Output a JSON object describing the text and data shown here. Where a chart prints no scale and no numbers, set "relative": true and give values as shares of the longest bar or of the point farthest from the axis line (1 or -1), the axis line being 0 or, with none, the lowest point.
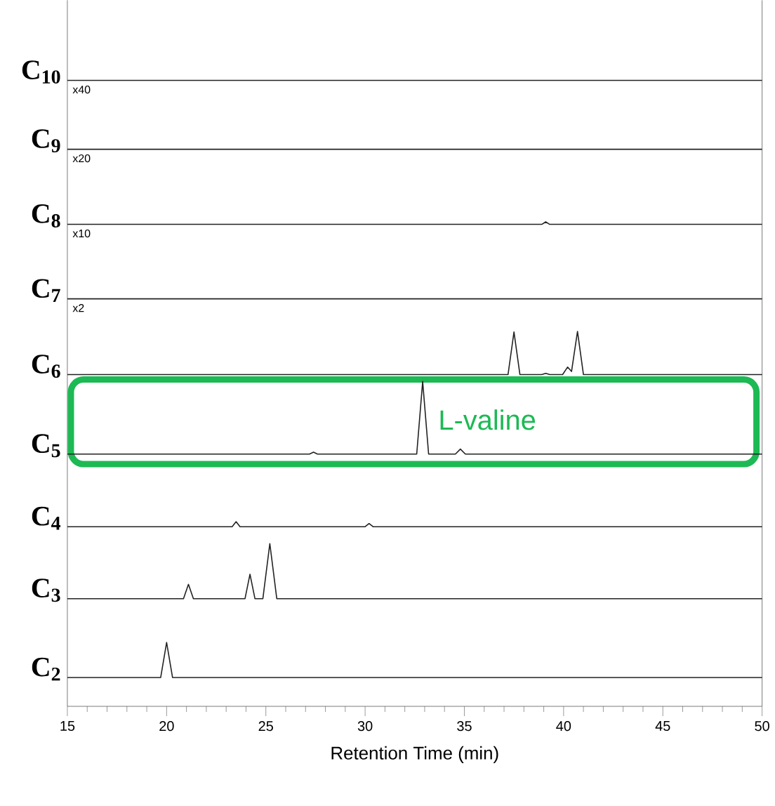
{
  "chart_data": {
    "type": "line",
    "relative": true,
    "xlabel": "Retention Time (min)",
    "xlim": [
      15,
      50
    ],
    "xticks": [
      15,
      20,
      25,
      30,
      35,
      40,
      45,
      50
    ],
    "marker": "none",
    "line_style": "solid",
    "series": [
      {
        "name": "C$_{2}$",
        "color": "#222222",
        "x": [
          15,
          19.7,
          20.0,
          20.3,
          50
        ],
        "values": [
          0.046,
          0.046,
          0.102,
          0.046,
          0.046
        ]
      },
      {
        "name": "C$_{3}$",
        "color": "#222222",
        "x": [
          15,
          20.85,
          21.1,
          21.35,
          23.95,
          24.2,
          24.45,
          24.85,
          25.2,
          25.55,
          50
        ],
        "values": [
          0.172,
          0.172,
          0.195,
          0.172,
          0.172,
          0.211,
          0.172,
          0.172,
          0.26,
          0.172,
          0.172
        ]
      },
      {
        "name": "C$_{4}$",
        "color": "#222222",
        "x": [
          15,
          23.3,
          23.5,
          23.7,
          30.0,
          30.2,
          30.4,
          50
        ],
        "values": [
          0.287,
          0.287,
          0.295,
          0.287,
          0.287,
          0.292,
          0.287,
          0.287
        ]
      },
      {
        "name": "C$_{5}$",
        "color": "#222222",
        "x": [
          15,
          27.2,
          27.4,
          27.6,
          32.6,
          32.9,
          33.2,
          34.55,
          34.8,
          35.05,
          50
        ],
        "values": [
          0.403,
          0.403,
          0.406,
          0.403,
          0.403,
          0.519,
          0.403,
          0.403,
          0.411,
          0.403,
          0.403
        ]
      },
      {
        "name": "C$_{6}$",
        "color": "#222222",
        "x": [
          15,
          37.2,
          37.5,
          37.8,
          38.9,
          39.1,
          39.3,
          39.95,
          40.2,
          40.4,
          40.7,
          41.0,
          50
        ],
        "values": [
          0.53,
          0.53,
          0.598,
          0.53,
          0.53,
          0.532,
          0.53,
          0.53,
          0.542,
          0.535,
          0.599,
          0.53,
          0.53
        ]
      },
      {
        "name": "C$_{7}$",
        "color": "#222222",
        "x": [
          15,
          50
        ],
        "values": [
          0.651,
          0.651
        ]
      },
      {
        "name": "C$_{8}$",
        "color": "#222222",
        "x": [
          15,
          38.9,
          39.1,
          39.3,
          50
        ],
        "values": [
          0.77,
          0.77,
          0.774,
          0.77,
          0.77
        ]
      },
      {
        "name": "C$_{9}$",
        "color": "#222222",
        "x": [
          15,
          50
        ],
        "values": [
          0.89,
          0.89
        ]
      },
      {
        "name": "C$_{10}$",
        "color": "#222222",
        "x": [
          15,
          50
        ],
        "values": [
          1,
          1
        ]
      }
    ],
    "annotations": [
      "x40",
      "x20",
      "x10",
      "x2",
      "L-valine"
    ]
  }
}
